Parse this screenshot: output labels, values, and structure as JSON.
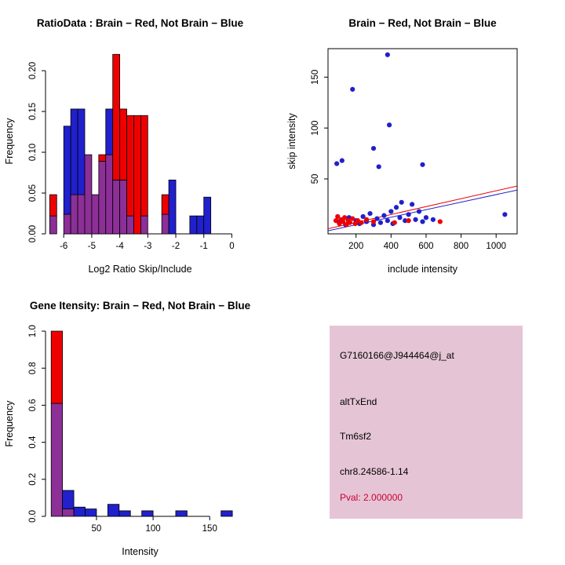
{
  "page": {
    "background": "#FFFFFF"
  },
  "colors": {
    "red": "#EE0000",
    "blue": "#2020CD",
    "overlap": "#8C2F97"
  },
  "chart_data": [
    {
      "id": "ratio-histogram",
      "type": "bar",
      "subtype": "overlaid-histogram",
      "title": "RatioData : Brain − Red, Not Brain − Blue",
      "xlabel": "Log2 Ratio Skip/Include",
      "ylabel": "Frequency",
      "xlim": [
        -6.65,
        0.1
      ],
      "ylim": [
        0,
        0.227
      ],
      "xtick_vals": [
        -6,
        -5,
        -4,
        -3,
        -2,
        -1,
        0
      ],
      "xtick_labels": [
        "-6",
        "-5",
        "-4",
        "-3",
        "-2",
        "-1",
        "0"
      ],
      "ytick_vals": [
        0,
        0.05,
        0.1,
        0.15,
        0.2
      ],
      "ytick_labels": [
        "0.00",
        "0.05",
        "0.10",
        "0.15",
        "0.20"
      ],
      "bin_width": 0.25,
      "legend": {
        "red": "Brain",
        "blue": "Not Brain"
      },
      "grid": false,
      "bins": [
        {
          "x": -6.5,
          "red": 0.048,
          "blue": 0.022
        },
        {
          "x": -6.0,
          "red": 0.024,
          "blue": 0.132
        },
        {
          "x": -5.75,
          "red": 0.048,
          "blue": 0.153
        },
        {
          "x": -5.5,
          "red": 0.048,
          "blue": 0.153
        },
        {
          "x": -5.25,
          "red": 0.097,
          "blue": 0.097
        },
        {
          "x": -5.0,
          "red": 0.048,
          "blue": 0.048
        },
        {
          "x": -4.75,
          "red": 0.097,
          "blue": 0.089
        },
        {
          "x": -4.5,
          "red": 0.097,
          "blue": 0.153
        },
        {
          "x": -4.25,
          "red": 0.22,
          "blue": 0.066
        },
        {
          "x": -4.0,
          "red": 0.153,
          "blue": 0.066
        },
        {
          "x": -3.75,
          "red": 0.145,
          "blue": 0.022
        },
        {
          "x": -3.5,
          "red": 0.145,
          "blue": 0
        },
        {
          "x": -3.25,
          "red": 0.145,
          "blue": 0.022
        },
        {
          "x": -2.5,
          "red": 0.048,
          "blue": 0.024
        },
        {
          "x": -2.25,
          "red": 0,
          "blue": 0.066
        },
        {
          "x": -1.5,
          "red": 0,
          "blue": 0.022
        },
        {
          "x": -1.25,
          "red": 0,
          "blue": 0.022
        },
        {
          "x": -1.0,
          "red": 0,
          "blue": 0.045
        }
      ]
    },
    {
      "id": "intensity-scatter",
      "type": "scatter",
      "title": "Brain − Red, Not Brain − Blue",
      "xlabel": "include intensity",
      "ylabel": "skip intensity",
      "xlim": [
        40,
        1120
      ],
      "ylim": [
        -4,
        178
      ],
      "xtick_vals": [
        200,
        400,
        600,
        800,
        1000
      ],
      "xtick_labels": [
        "200",
        "400",
        "600",
        "800",
        "1000"
      ],
      "ytick_vals": [
        50,
        100,
        150
      ],
      "ytick_labels": [
        "50",
        "100",
        "150"
      ],
      "grid": false,
      "legend_position": "none",
      "series": [
        {
          "name": "Not Brain",
          "color": "#2020CD",
          "points": [
            [
              90,
              65
            ],
            [
              120,
              68
            ],
            [
              180,
              138
            ],
            [
              300,
              80
            ],
            [
              330,
              62
            ],
            [
              380,
              172
            ],
            [
              390,
              103
            ],
            [
              580,
              64
            ],
            [
              1050,
              15
            ],
            [
              100,
              8
            ],
            [
              140,
              5
            ],
            [
              160,
              12
            ],
            [
              200,
              9
            ],
            [
              220,
              6
            ],
            [
              240,
              13
            ],
            [
              260,
              8
            ],
            [
              280,
              16
            ],
            [
              300,
              5
            ],
            [
              320,
              11
            ],
            [
              340,
              7
            ],
            [
              360,
              14
            ],
            [
              380,
              9
            ],
            [
              400,
              18
            ],
            [
              410,
              6
            ],
            [
              430,
              22
            ],
            [
              450,
              12
            ],
            [
              460,
              27
            ],
            [
              480,
              9
            ],
            [
              500,
              15
            ],
            [
              520,
              25
            ],
            [
              540,
              10
            ],
            [
              560,
              18
            ],
            [
              580,
              8
            ],
            [
              600,
              12
            ],
            [
              640,
              10
            ]
          ]
        },
        {
          "name": "Brain",
          "color": "#EE0000",
          "points": [
            [
              85,
              9
            ],
            [
              95,
              13
            ],
            [
              105,
              6
            ],
            [
              115,
              10
            ],
            [
              125,
              8
            ],
            [
              135,
              12
            ],
            [
              145,
              5
            ],
            [
              155,
              9
            ],
            [
              165,
              7
            ],
            [
              180,
              11
            ],
            [
              195,
              6
            ],
            [
              210,
              9
            ],
            [
              230,
              7
            ],
            [
              260,
              10
            ],
            [
              300,
              8
            ],
            [
              420,
              7
            ],
            [
              500,
              9
            ],
            [
              680,
              8
            ]
          ]
        }
      ],
      "lines": [
        {
          "name": "brain-fit-line",
          "color": "#EE0000",
          "from": [
            40,
            1
          ],
          "to": [
            1120,
            43
          ]
        },
        {
          "name": "not-brain-fit-line",
          "color": "#2020CD",
          "from": [
            40,
            -1
          ],
          "to": [
            1120,
            39
          ]
        }
      ]
    },
    {
      "id": "gene-intensity-histogram",
      "type": "bar",
      "subtype": "overlaid-histogram",
      "title": "Gene Itensity: Brain − Red, Not Brain − Blue",
      "xlabel": "Intensity",
      "ylabel": "Frequency",
      "xlim": [
        5,
        172
      ],
      "ylim": [
        0,
        1.0
      ],
      "xtick_vals": [
        50,
        100,
        150
      ],
      "xtick_labels": [
        "50",
        "100",
        "150"
      ],
      "ytick_vals": [
        0,
        0.2,
        0.4,
        0.6,
        0.8,
        1.0
      ],
      "ytick_labels": [
        "0.0",
        "0.2",
        "0.4",
        "0.6",
        "0.8",
        "1.0"
      ],
      "bin_width": 10,
      "legend": {
        "red": "Brain",
        "blue": "Not Brain"
      },
      "grid": false,
      "bins": [
        {
          "x": 10,
          "red": 1.0,
          "blue": 0.61
        },
        {
          "x": 20,
          "red": 0.04,
          "blue": 0.14
        },
        {
          "x": 30,
          "red": 0,
          "blue": 0.05
        },
        {
          "x": 40,
          "red": 0,
          "blue": 0.04
        },
        {
          "x": 60,
          "red": 0,
          "blue": 0.065
        },
        {
          "x": 70,
          "red": 0,
          "blue": 0.03
        },
        {
          "x": 90,
          "red": 0,
          "blue": 0.03
        },
        {
          "x": 120,
          "red": 0,
          "blue": 0.03
        },
        {
          "x": 160,
          "red": 0,
          "blue": 0.03
        }
      ]
    }
  ],
  "info_box": {
    "bg": "#E5C5D5",
    "text_color": "#000000",
    "pval_color": "#CC0033",
    "lines": [
      "G7160166@J944464@j_at",
      "altTxEnd",
      "Tm6sf2",
      "chr8.24586-1.14",
      "Pval: 2.000000"
    ]
  }
}
